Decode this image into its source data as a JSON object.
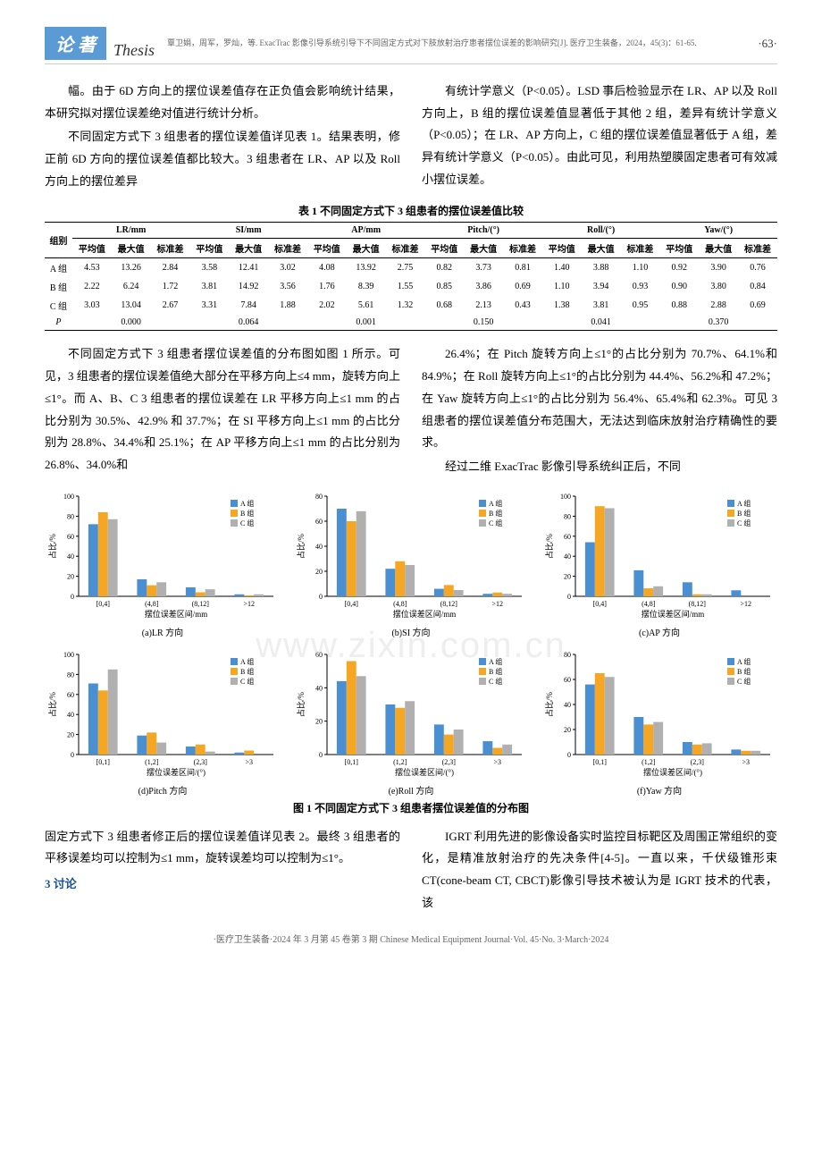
{
  "header": {
    "section_cn": "论  著",
    "section_en": "Thesis",
    "citation": "覃卫娟，周军，罗灿，等. ExacTrac 影像引导系统引导下不同固定方式对下肢放射治疗患者摆位误差的影响研究[J]. 医疗卫生装备，2024，45(3)：61-65.",
    "page": "·63·"
  },
  "watermark": "www.zixin.com.cn",
  "para_left_1": "幅。由于 6D 方向上的摆位误差值存在正负值会影响统计结果，本研究拟对摆位误差绝对值进行统计分析。",
  "para_left_2": "不同固定方式下 3 组患者的摆位误差值详见表 1。结果表明，修正前 6D 方向的摆位误差值都比较大。3 组患者在 LR、AP 以及 Roll 方向上的摆位差异",
  "para_right_1": "有统计学意义（P<0.05）。LSD 事后检验显示在 LR、AP 以及 Roll 方向上，B 组的摆位误差值显著低于其他 2 组，差异有统计学意义（P<0.05）；在 LR、AP 方向上，C 组的摆位误差值显著低于 A 组，差异有统计学意义（P<0.05）。由此可见，利用热塑膜固定患者可有效减小摆位误差。",
  "table1": {
    "caption": "表 1  不同固定方式下 3 组患者的摆位误差值比较",
    "group_col": "组别",
    "metrics": [
      "LR/mm",
      "SI/mm",
      "AP/mm",
      "Pitch/(°)",
      "Roll/(°)",
      "Yaw/(°)"
    ],
    "subheaders": [
      "平均值",
      "最大值",
      "标准差"
    ],
    "rows": [
      {
        "label": "A 组",
        "vals": [
          "4.53",
          "13.26",
          "2.84",
          "3.58",
          "12.41",
          "3.02",
          "4.08",
          "13.92",
          "2.75",
          "0.82",
          "3.73",
          "0.81",
          "1.40",
          "3.88",
          "1.10",
          "0.92",
          "3.90",
          "0.76"
        ]
      },
      {
        "label": "B 组",
        "vals": [
          "2.22",
          "6.24",
          "1.72",
          "3.81",
          "14.92",
          "3.56",
          "1.76",
          "8.39",
          "1.55",
          "0.85",
          "3.86",
          "0.69",
          "1.10",
          "3.94",
          "0.93",
          "0.90",
          "3.80",
          "0.84"
        ]
      },
      {
        "label": "C 组",
        "vals": [
          "3.03",
          "13.04",
          "2.67",
          "3.31",
          "7.84",
          "1.88",
          "2.02",
          "5.61",
          "1.32",
          "0.68",
          "2.13",
          "0.43",
          "1.38",
          "3.81",
          "0.95",
          "0.88",
          "2.88",
          "0.69"
        ]
      }
    ],
    "p_row": {
      "label": "P",
      "vals": [
        "0.000",
        "0.064",
        "0.001",
        "0.150",
        "0.041",
        "0.370"
      ]
    }
  },
  "para_mid_left": "不同固定方式下 3 组患者摆位误差值的分布图如图 1 所示。可见，3 组患者的摆位误差值绝大部分在平移方向上≤4 mm，旋转方向上≤1°。而 A、B、C 3 组患者的摆位误差在 LR 平移方向上≤1 mm 的占比分别为 30.5%、42.9% 和 37.7%；在 SI 平移方向上≤1 mm 的占比分别为 28.8%、34.4%和 25.1%；在 AP 平移方向上≤1 mm 的占比分别为 26.8%、34.0%和",
  "para_mid_right": "26.4%；在 Pitch 旋转方向上≤1°的占比分别为 70.7%、64.1%和 84.9%；在 Roll 旋转方向上≤1°的占比分别为 44.4%、56.2%和 47.2%；在 Yaw 旋转方向上≤1°的占比分别为 56.4%、65.4%和 62.3%。可见 3 组患者的摆位误差值分布范围大，无法达到临床放射治疗精确性的要求。",
  "para_mid_right2": "经过二维 ExacTrac 影像引导系统纠正后，不同",
  "charts": {
    "colors": {
      "A": "#4a8fd1",
      "B": "#f5a623",
      "C": "#b0b0b0"
    },
    "legend": [
      "A 组",
      "B 组",
      "C 组"
    ],
    "ylabel": "占比/%",
    "subplots": [
      {
        "title": "(a)LR 方向",
        "xlabel": "摆位误差区间/mm",
        "cats": [
          "[0,4]",
          "(4,8]",
          "(8,12]",
          ">12"
        ],
        "ymax": 100,
        "ystep": 20,
        "data": {
          "A": [
            72,
            17,
            9,
            2
          ],
          "B": [
            84,
            11,
            4,
            1
          ],
          "C": [
            77,
            14,
            7,
            2
          ]
        }
      },
      {
        "title": "(b)SI 方向",
        "xlabel": "摆位误差区间/mm",
        "cats": [
          "[0,4]",
          "(4,8]",
          "(8,12]",
          ">12"
        ],
        "ymax": 80,
        "ystep": 20,
        "data": {
          "A": [
            70,
            22,
            6,
            2
          ],
          "B": [
            60,
            28,
            9,
            3
          ],
          "C": [
            68,
            25,
            5,
            2
          ]
        }
      },
      {
        "title": "(c)AP 方向",
        "xlabel": "摆位误差区间/mm",
        "cats": [
          "[0,4]",
          "(4,8]",
          "(8,12]",
          ">12"
        ],
        "ymax": 100,
        "ystep": 20,
        "data": {
          "A": [
            54,
            26,
            14,
            6
          ],
          "B": [
            90,
            8,
            2,
            0
          ],
          "C": [
            88,
            10,
            2,
            0
          ]
        }
      },
      {
        "title": "(d)Pitch 方向",
        "xlabel": "摆位误差区间/(°)",
        "cats": [
          "[0,1]",
          "(1,2]",
          "(2,3]",
          ">3"
        ],
        "ymax": 100,
        "ystep": 20,
        "data": {
          "A": [
            71,
            19,
            8,
            2
          ],
          "B": [
            64,
            22,
            10,
            4
          ],
          "C": [
            85,
            12,
            3,
            0
          ]
        }
      },
      {
        "title": "(e)Roll 方向",
        "xlabel": "摆位误差区间/(°)",
        "cats": [
          "[0,1]",
          "(1,2]",
          "(2,3]",
          ">3"
        ],
        "ymax": 60,
        "ystep": 20,
        "data": {
          "A": [
            44,
            30,
            18,
            8
          ],
          "B": [
            56,
            28,
            12,
            4
          ],
          "C": [
            47,
            32,
            15,
            6
          ]
        }
      },
      {
        "title": "(f)Yaw 方向",
        "xlabel": "摆位误差区间/(°)",
        "cats": [
          "[0,1]",
          "(1,2]",
          "(2,3]",
          ">3"
        ],
        "ymax": 80,
        "ystep": 20,
        "data": {
          "A": [
            56,
            30,
            10,
            4
          ],
          "B": [
            65,
            24,
            8,
            3
          ],
          "C": [
            62,
            26,
            9,
            3
          ]
        }
      }
    ]
  },
  "fig1_caption": "图 1  不同固定方式下 3 组患者摆位误差值的分布图",
  "para_bot_left": "固定方式下 3 组患者修正后的摆位误差值详见表 2。最终 3 组患者的平移误差均可以控制为≤1 mm，旋转误差均可以控制为≤1°。",
  "section3_head": "3  讨论",
  "para_bot_right": "IGRT 利用先进的影像设备实时监控目标靶区及周围正常组织的变化，是精准放射治疗的先决条件[4-5]。一直以来，千伏级锥形束 CT(cone-beam CT, CBCT)影像引导技术被认为是 IGRT 技术的代表，该",
  "footer": "·医疗卫生装备·2024 年 3 月第 45 卷第 3 期    Chinese Medical Equipment Journal·Vol. 45·No. 3·March·2024"
}
